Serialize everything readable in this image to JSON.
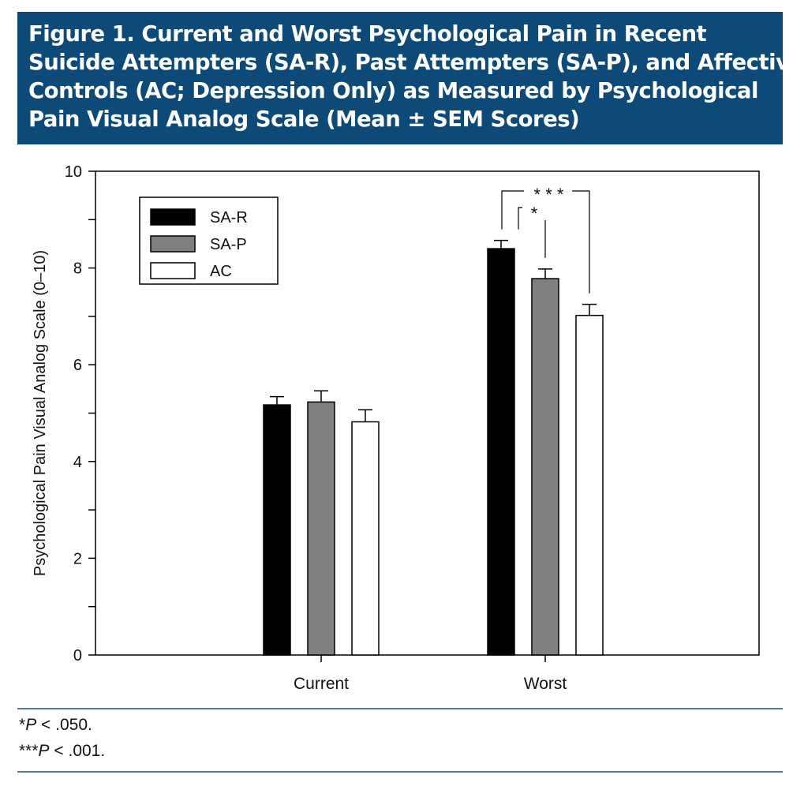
{
  "figure": {
    "title_lines": [
      "Figure 1. Current and Worst Psychological Pain in Recent",
      "Suicide Attempters (SA-R), Past Attempters (SA-P), and Affective",
      "Controls (AC; Depression Only) as Measured by Psychological",
      "Pain Visual Analog Scale (Mean ± SEM Scores)"
    ],
    "footnotes": [
      {
        "stars": "*",
        "p": "P",
        "rest": " < .050."
      },
      {
        "stars": "***",
        "p": "P",
        "rest": " < .001."
      }
    ]
  },
  "chart_data": {
    "type": "bar",
    "ylabel": "Psychological Pain Visual Analog Scale (0–10)",
    "xlabel": "",
    "ylim": [
      0,
      10
    ],
    "yticks": [
      0,
      2,
      4,
      6,
      8,
      10
    ],
    "categories": [
      "Current",
      "Worst"
    ],
    "legend_position": "top-left",
    "series": [
      {
        "name": "SA-R",
        "color": "#000000",
        "values": [
          5.17,
          8.4
        ],
        "sem": [
          0.17,
          0.17
        ]
      },
      {
        "name": "SA-P",
        "color": "#808080",
        "values": [
          5.23,
          7.78
        ],
        "sem": [
          0.23,
          0.2
        ]
      },
      {
        "name": "AC",
        "color": "#ffffff",
        "values": [
          4.82,
          7.02
        ],
        "sem": [
          0.25,
          0.23
        ]
      }
    ],
    "significance": [
      {
        "category": "Worst",
        "from": "SA-R",
        "to": "SA-P",
        "label": "*"
      },
      {
        "category": "Worst",
        "from": "SA-R",
        "to": "AC",
        "label": "* * *"
      }
    ]
  }
}
